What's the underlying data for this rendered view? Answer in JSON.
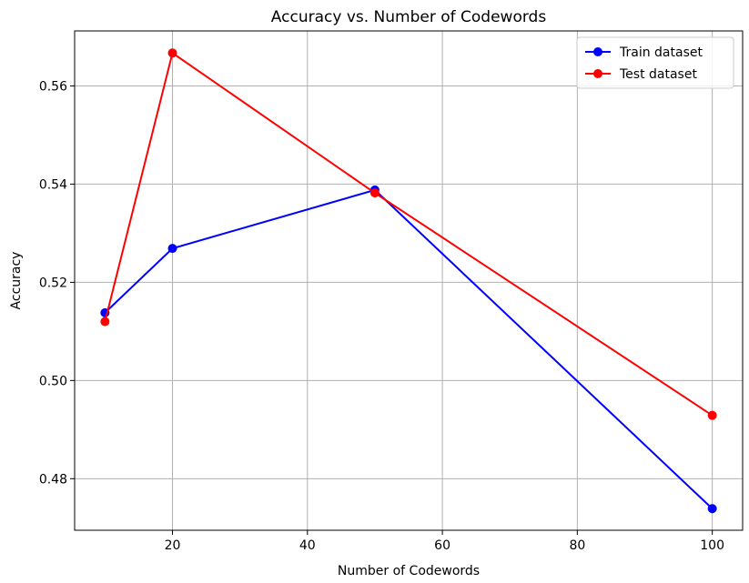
{
  "chart_data": {
    "type": "line",
    "title": "Accuracy vs. Number of Codewords",
    "xlabel": "Number of Codewords",
    "ylabel": "Accuracy",
    "xlim": [
      5.5,
      104.5
    ],
    "ylim": [
      0.4695,
      0.5712
    ],
    "xticks": [
      20,
      40,
      60,
      80,
      100
    ],
    "xtick_labels": [
      "20",
      "40",
      "60",
      "80",
      "100"
    ],
    "yticks": [
      0.48,
      0.5,
      0.52,
      0.54,
      0.56
    ],
    "ytick_labels": [
      "0.48",
      "0.50",
      "0.52",
      "0.54",
      "0.56"
    ],
    "grid": true,
    "legend_position": "top-right",
    "x": [
      10,
      20,
      50,
      100
    ],
    "series": [
      {
        "name": "Train dataset",
        "color": "#0000ff",
        "values": [
          0.5138,
          0.5269,
          0.5388,
          0.4739
        ]
      },
      {
        "name": "Test dataset",
        "color": "#ff0000",
        "values": [
          0.512,
          0.5667,
          0.5382,
          0.4929
        ]
      }
    ]
  }
}
